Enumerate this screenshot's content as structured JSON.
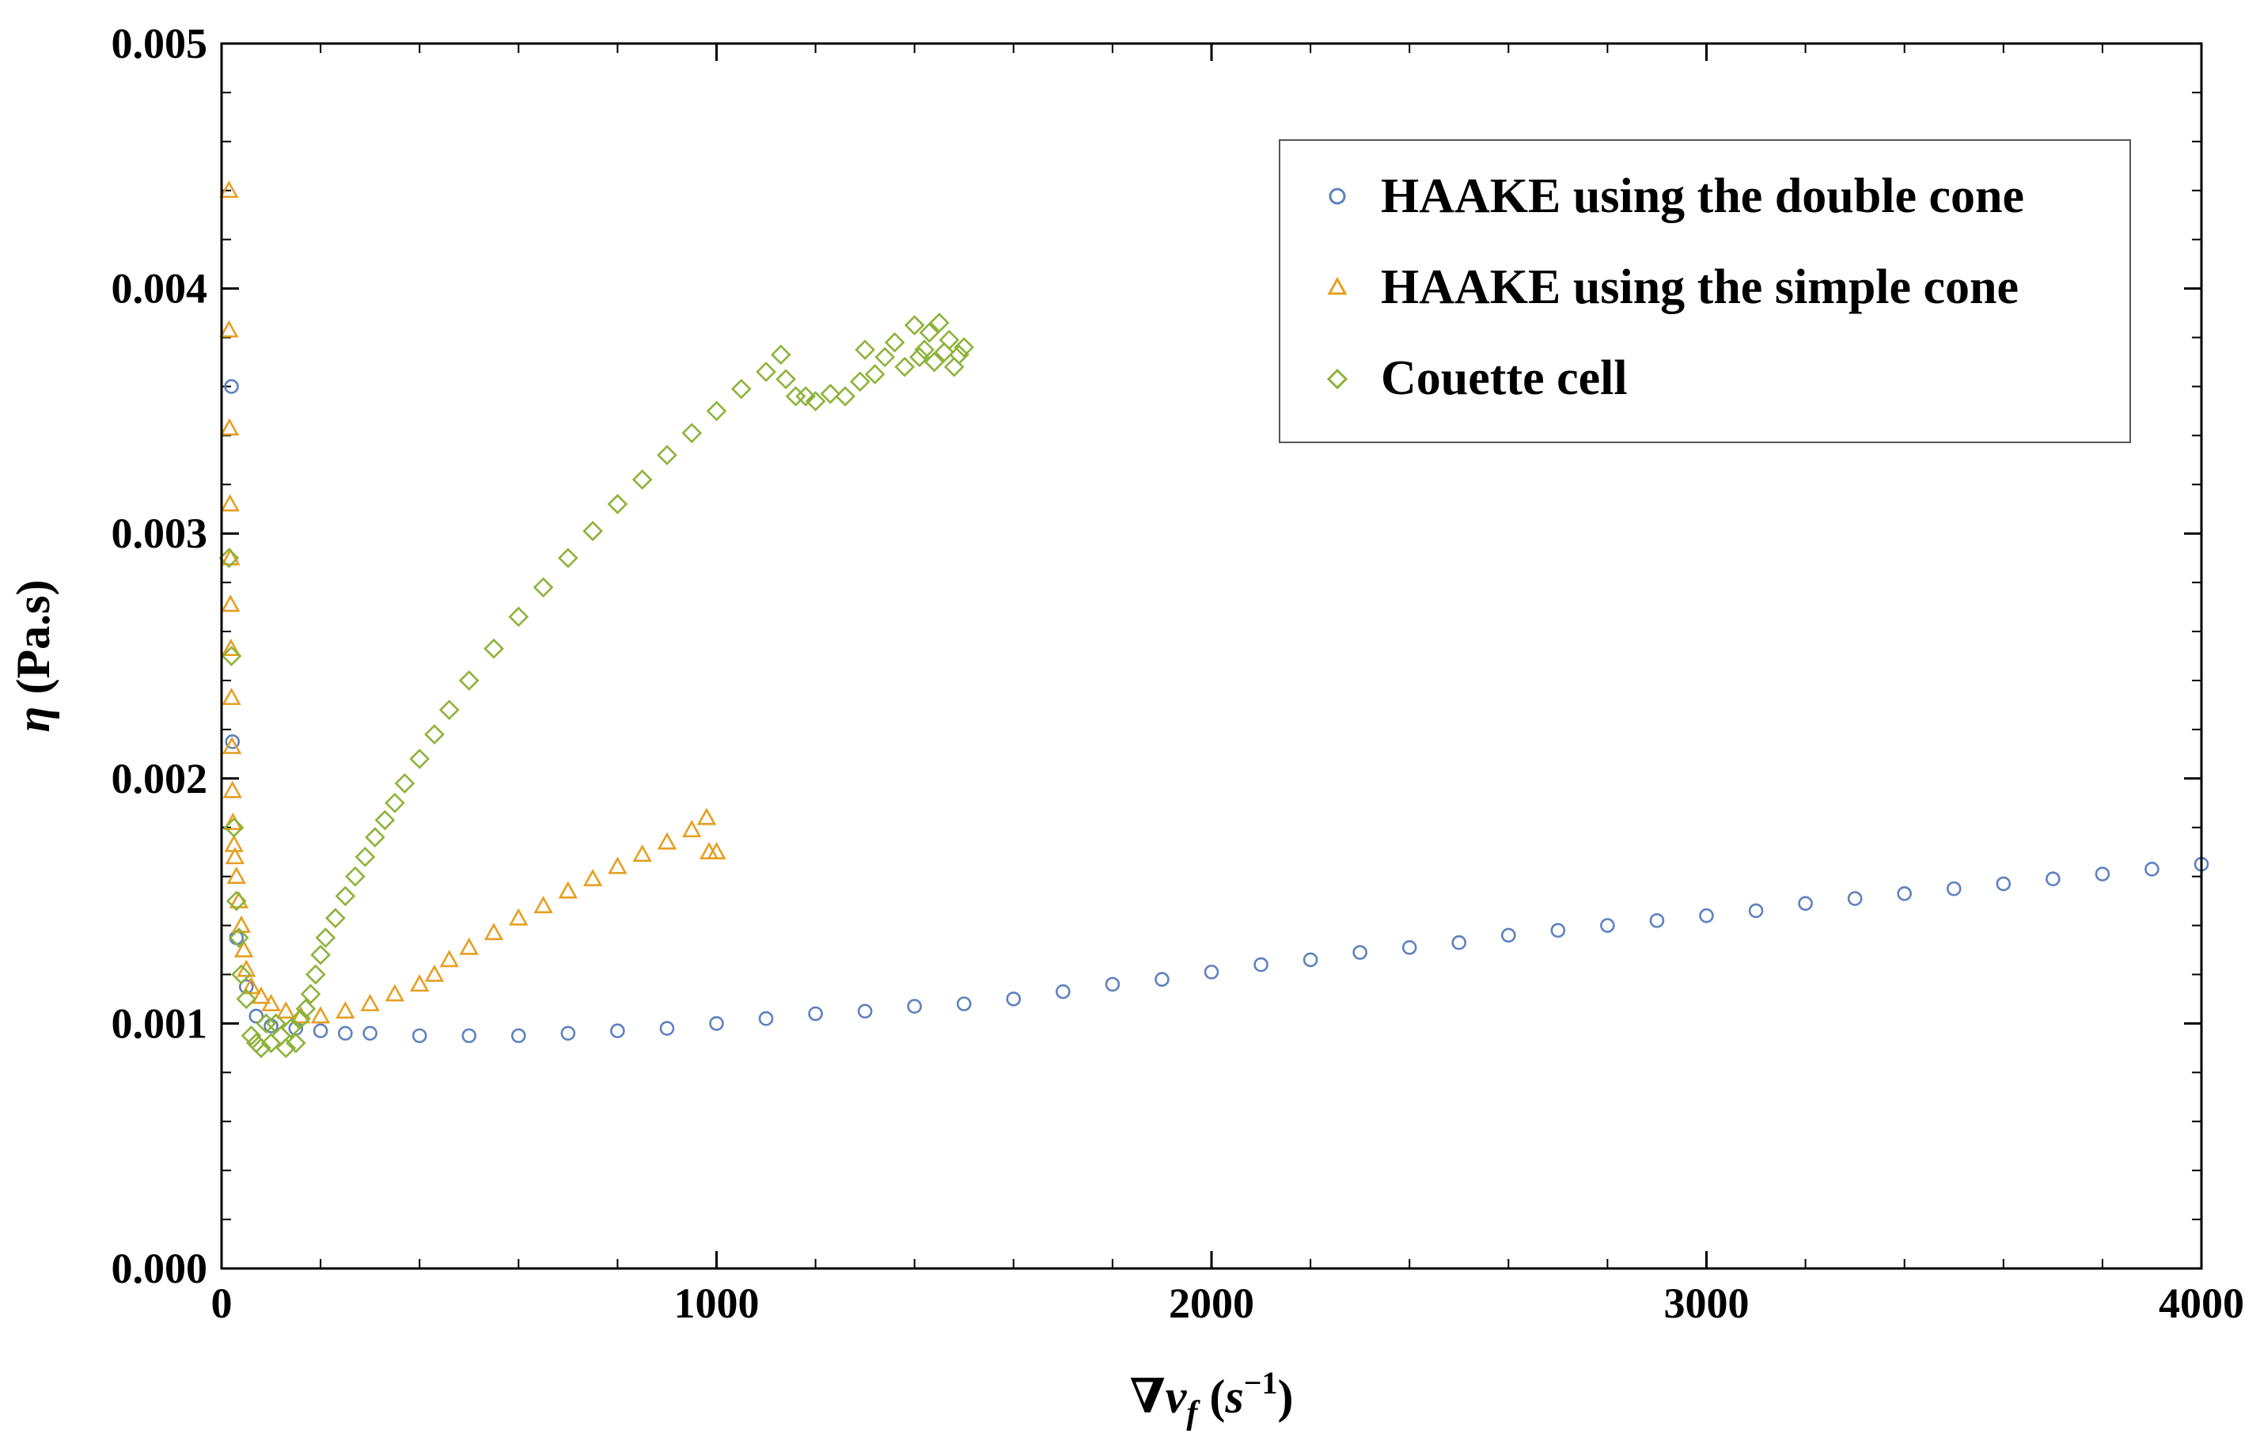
{
  "chart_data": {
    "type": "scatter",
    "title": "",
    "xlabel": "∇v_f (s⁻¹)",
    "ylabel": "η (Pa.s)",
    "xlabel_parts": {
      "nabla": "∇",
      "v": "v",
      "sub": "f",
      "open": " (",
      "s": "s",
      "sup": "−1",
      "close": ")"
    },
    "ylabel_parts": {
      "eta": "η",
      "unit": " (Pa.s)"
    },
    "xlim": [
      0,
      4000
    ],
    "ylim": [
      0,
      0.005
    ],
    "xticks": [
      0,
      1000,
      2000,
      3000,
      4000
    ],
    "xtick_labels": [
      "0",
      "1000",
      "2000",
      "3000",
      "4000"
    ],
    "yticks": [
      0,
      0.001,
      0.002,
      0.003,
      0.004,
      0.005
    ],
    "ytick_labels": [
      "0.000",
      "0.001",
      "0.002",
      "0.003",
      "0.004",
      "0.005"
    ],
    "legend_position": "top-right",
    "series": [
      {
        "name": "HAAKE using the double cone",
        "marker": "circle",
        "color": "#5f81c0",
        "points": [
          [
            20,
            0.0036
          ],
          [
            22,
            0.00215
          ],
          [
            30,
            0.00135
          ],
          [
            50,
            0.00115
          ],
          [
            70,
            0.00103
          ],
          [
            100,
            0.00099
          ],
          [
            150,
            0.00098
          ],
          [
            200,
            0.00097
          ],
          [
            250,
            0.00096
          ],
          [
            300,
            0.00096
          ],
          [
            400,
            0.00095
          ],
          [
            500,
            0.00095
          ],
          [
            600,
            0.00095
          ],
          [
            700,
            0.00096
          ],
          [
            800,
            0.00097
          ],
          [
            900,
            0.00098
          ],
          [
            1000,
            0.001
          ],
          [
            1100,
            0.00102
          ],
          [
            1200,
            0.00104
          ],
          [
            1300,
            0.00105
          ],
          [
            1400,
            0.00107
          ],
          [
            1500,
            0.00108
          ],
          [
            1600,
            0.0011
          ],
          [
            1700,
            0.00113
          ],
          [
            1800,
            0.00116
          ],
          [
            1900,
            0.00118
          ],
          [
            2000,
            0.00121
          ],
          [
            2100,
            0.00124
          ],
          [
            2200,
            0.00126
          ],
          [
            2300,
            0.00129
          ],
          [
            2400,
            0.00131
          ],
          [
            2500,
            0.00133
          ],
          [
            2600,
            0.00136
          ],
          [
            2700,
            0.00138
          ],
          [
            2800,
            0.0014
          ],
          [
            2900,
            0.00142
          ],
          [
            3000,
            0.00144
          ],
          [
            3100,
            0.00146
          ],
          [
            3200,
            0.00149
          ],
          [
            3300,
            0.00151
          ],
          [
            3400,
            0.00153
          ],
          [
            3500,
            0.00155
          ],
          [
            3600,
            0.00157
          ],
          [
            3700,
            0.00159
          ],
          [
            3800,
            0.00161
          ],
          [
            3900,
            0.00163
          ],
          [
            4000,
            0.00165
          ]
        ]
      },
      {
        "name": "HAAKE using the simple cone",
        "marker": "triangle",
        "color": "#e69f22",
        "points": [
          [
            15,
            0.0044
          ],
          [
            15,
            0.00383
          ],
          [
            16,
            0.00343
          ],
          [
            17,
            0.00312
          ],
          [
            18,
            0.0029
          ],
          [
            18,
            0.00271
          ],
          [
            19,
            0.00253
          ],
          [
            20,
            0.00233
          ],
          [
            21,
            0.00213
          ],
          [
            22,
            0.00195
          ],
          [
            23,
            0.00182
          ],
          [
            25,
            0.00173
          ],
          [
            27,
            0.00168
          ],
          [
            30,
            0.0016
          ],
          [
            35,
            0.0015
          ],
          [
            40,
            0.0014
          ],
          [
            45,
            0.0013
          ],
          [
            50,
            0.00122
          ],
          [
            60,
            0.00115
          ],
          [
            80,
            0.00111
          ],
          [
            100,
            0.00108
          ],
          [
            130,
            0.00105
          ],
          [
            160,
            0.00103
          ],
          [
            200,
            0.00103
          ],
          [
            250,
            0.00105
          ],
          [
            300,
            0.00108
          ],
          [
            350,
            0.00112
          ],
          [
            400,
            0.00116
          ],
          [
            430,
            0.0012
          ],
          [
            460,
            0.00126
          ],
          [
            500,
            0.00131
          ],
          [
            550,
            0.00137
          ],
          [
            600,
            0.00143
          ],
          [
            650,
            0.00148
          ],
          [
            700,
            0.00154
          ],
          [
            750,
            0.00159
          ],
          [
            800,
            0.00164
          ],
          [
            850,
            0.00169
          ],
          [
            900,
            0.00174
          ],
          [
            950,
            0.00179
          ],
          [
            980,
            0.00184
          ],
          [
            985,
            0.0017
          ],
          [
            1000,
            0.0017
          ]
        ]
      },
      {
        "name": "Couette cell",
        "marker": "diamond",
        "color": "#8db33a",
        "points": [
          [
            15,
            0.0029
          ],
          [
            20,
            0.0025
          ],
          [
            25,
            0.0018
          ],
          [
            30,
            0.0015
          ],
          [
            35,
            0.00135
          ],
          [
            40,
            0.0012
          ],
          [
            50,
            0.0011
          ],
          [
            60,
            0.00095
          ],
          [
            70,
            0.00092
          ],
          [
            80,
            0.0009
          ],
          [
            90,
            0.001
          ],
          [
            100,
            0.00092
          ],
          [
            110,
            0.001
          ],
          [
            120,
            0.00095
          ],
          [
            130,
            0.0009
          ],
          [
            140,
            0.00098
          ],
          [
            150,
            0.00092
          ],
          [
            160,
            0.00102
          ],
          [
            170,
            0.00106
          ],
          [
            180,
            0.00112
          ],
          [
            190,
            0.0012
          ],
          [
            200,
            0.00128
          ],
          [
            210,
            0.00135
          ],
          [
            230,
            0.00143
          ],
          [
            250,
            0.00152
          ],
          [
            270,
            0.0016
          ],
          [
            290,
            0.00168
          ],
          [
            310,
            0.00176
          ],
          [
            330,
            0.00183
          ],
          [
            350,
            0.0019
          ],
          [
            370,
            0.00198
          ],
          [
            400,
            0.00208
          ],
          [
            430,
            0.00218
          ],
          [
            460,
            0.00228
          ],
          [
            500,
            0.0024
          ],
          [
            550,
            0.00253
          ],
          [
            600,
            0.00266
          ],
          [
            650,
            0.00278
          ],
          [
            700,
            0.0029
          ],
          [
            750,
            0.00301
          ],
          [
            800,
            0.00312
          ],
          [
            850,
            0.00322
          ],
          [
            900,
            0.00332
          ],
          [
            950,
            0.00341
          ],
          [
            1000,
            0.0035
          ],
          [
            1050,
            0.00359
          ],
          [
            1100,
            0.00366
          ],
          [
            1130,
            0.00373
          ],
          [
            1140,
            0.00363
          ],
          [
            1160,
            0.00356
          ],
          [
            1180,
            0.00356
          ],
          [
            1200,
            0.00354
          ],
          [
            1230,
            0.00357
          ],
          [
            1260,
            0.00356
          ],
          [
            1290,
            0.00362
          ],
          [
            1300,
            0.00375
          ],
          [
            1320,
            0.00365
          ],
          [
            1340,
            0.00372
          ],
          [
            1360,
            0.00378
          ],
          [
            1380,
            0.00368
          ],
          [
            1400,
            0.00385
          ],
          [
            1410,
            0.00372
          ],
          [
            1420,
            0.00375
          ],
          [
            1430,
            0.00382
          ],
          [
            1440,
            0.0037
          ],
          [
            1450,
            0.00386
          ],
          [
            1460,
            0.00374
          ],
          [
            1470,
            0.00379
          ],
          [
            1480,
            0.00368
          ],
          [
            1490,
            0.00373
          ],
          [
            1500,
            0.00376
          ]
        ]
      }
    ]
  }
}
